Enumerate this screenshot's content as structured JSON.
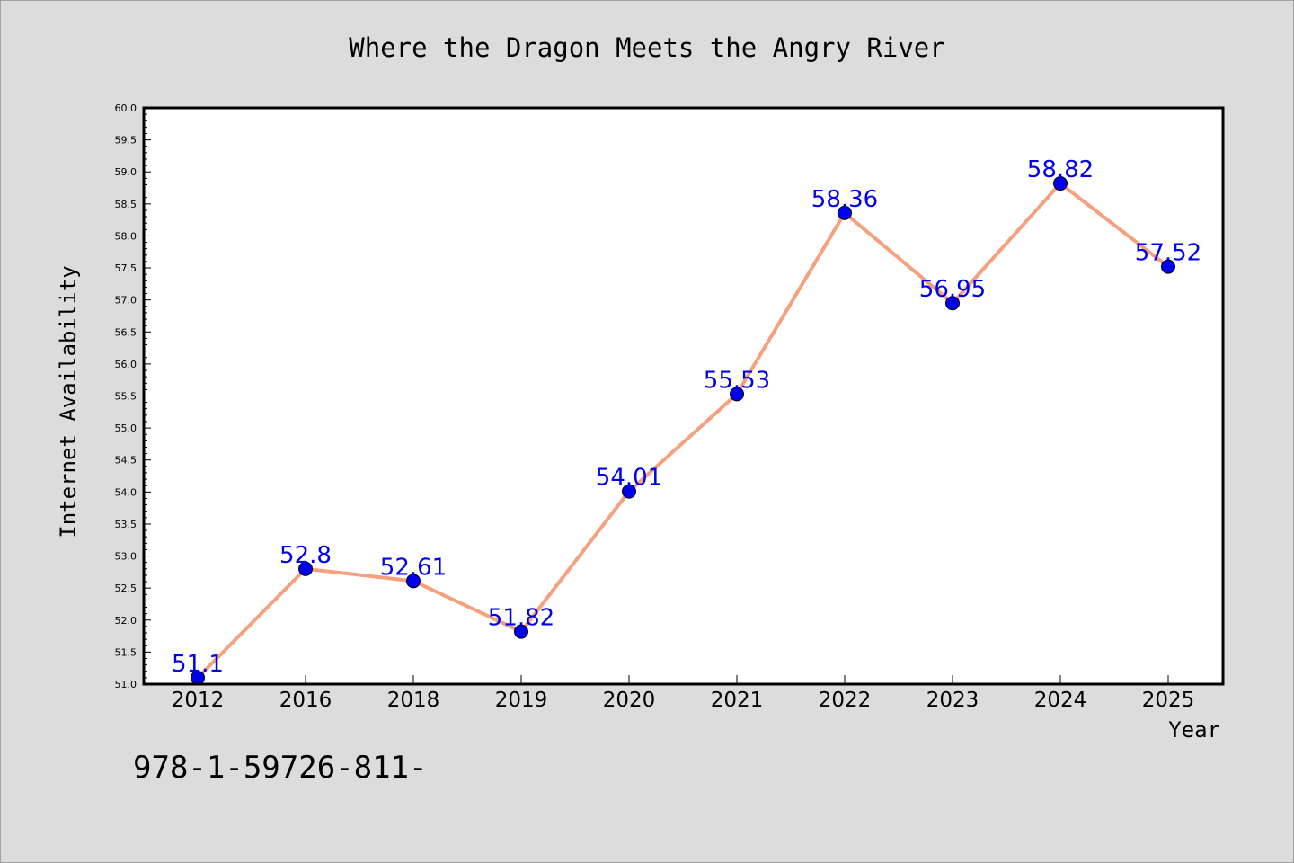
{
  "chart_data": {
    "type": "line",
    "title": "Where the Dragon Meets the Angry River",
    "xlabel": "Year",
    "ylabel": "Internet Availability",
    "categories": [
      "2012",
      "2016",
      "2018",
      "2019",
      "2020",
      "2021",
      "2022",
      "2023",
      "2024",
      "2025"
    ],
    "series": [
      {
        "values": [
          51.1,
          52.8,
          52.61,
          51.82,
          54.01,
          55.53,
          58.36,
          56.95,
          58.82,
          57.52
        ],
        "data_labels": [
          "51.1",
          "52.8",
          "52.61",
          "51.82",
          "54.01",
          "55.53",
          "58.36",
          "56.95",
          "58.82",
          "57.52"
        ],
        "line_color": "#f5a07e",
        "marker_color": "#0000ee"
      }
    ],
    "ylim": [
      51.0,
      60.0
    ],
    "yticks": [
      "51.0",
      "51.5",
      "52.0",
      "52.5",
      "53.0",
      "53.5",
      "54.0",
      "54.5",
      "55.0",
      "55.5",
      "56.0",
      "56.5",
      "57.0",
      "57.5",
      "58.0",
      "58.5",
      "59.0",
      "59.5",
      "60.0"
    ],
    "grid": false,
    "legend": "none",
    "label_color": "#0000ee",
    "background_color": "#dcdcdc",
    "plot_background": "#ffffff"
  },
  "footer": {
    "isbn_text": "978-1-59726-811-"
  }
}
